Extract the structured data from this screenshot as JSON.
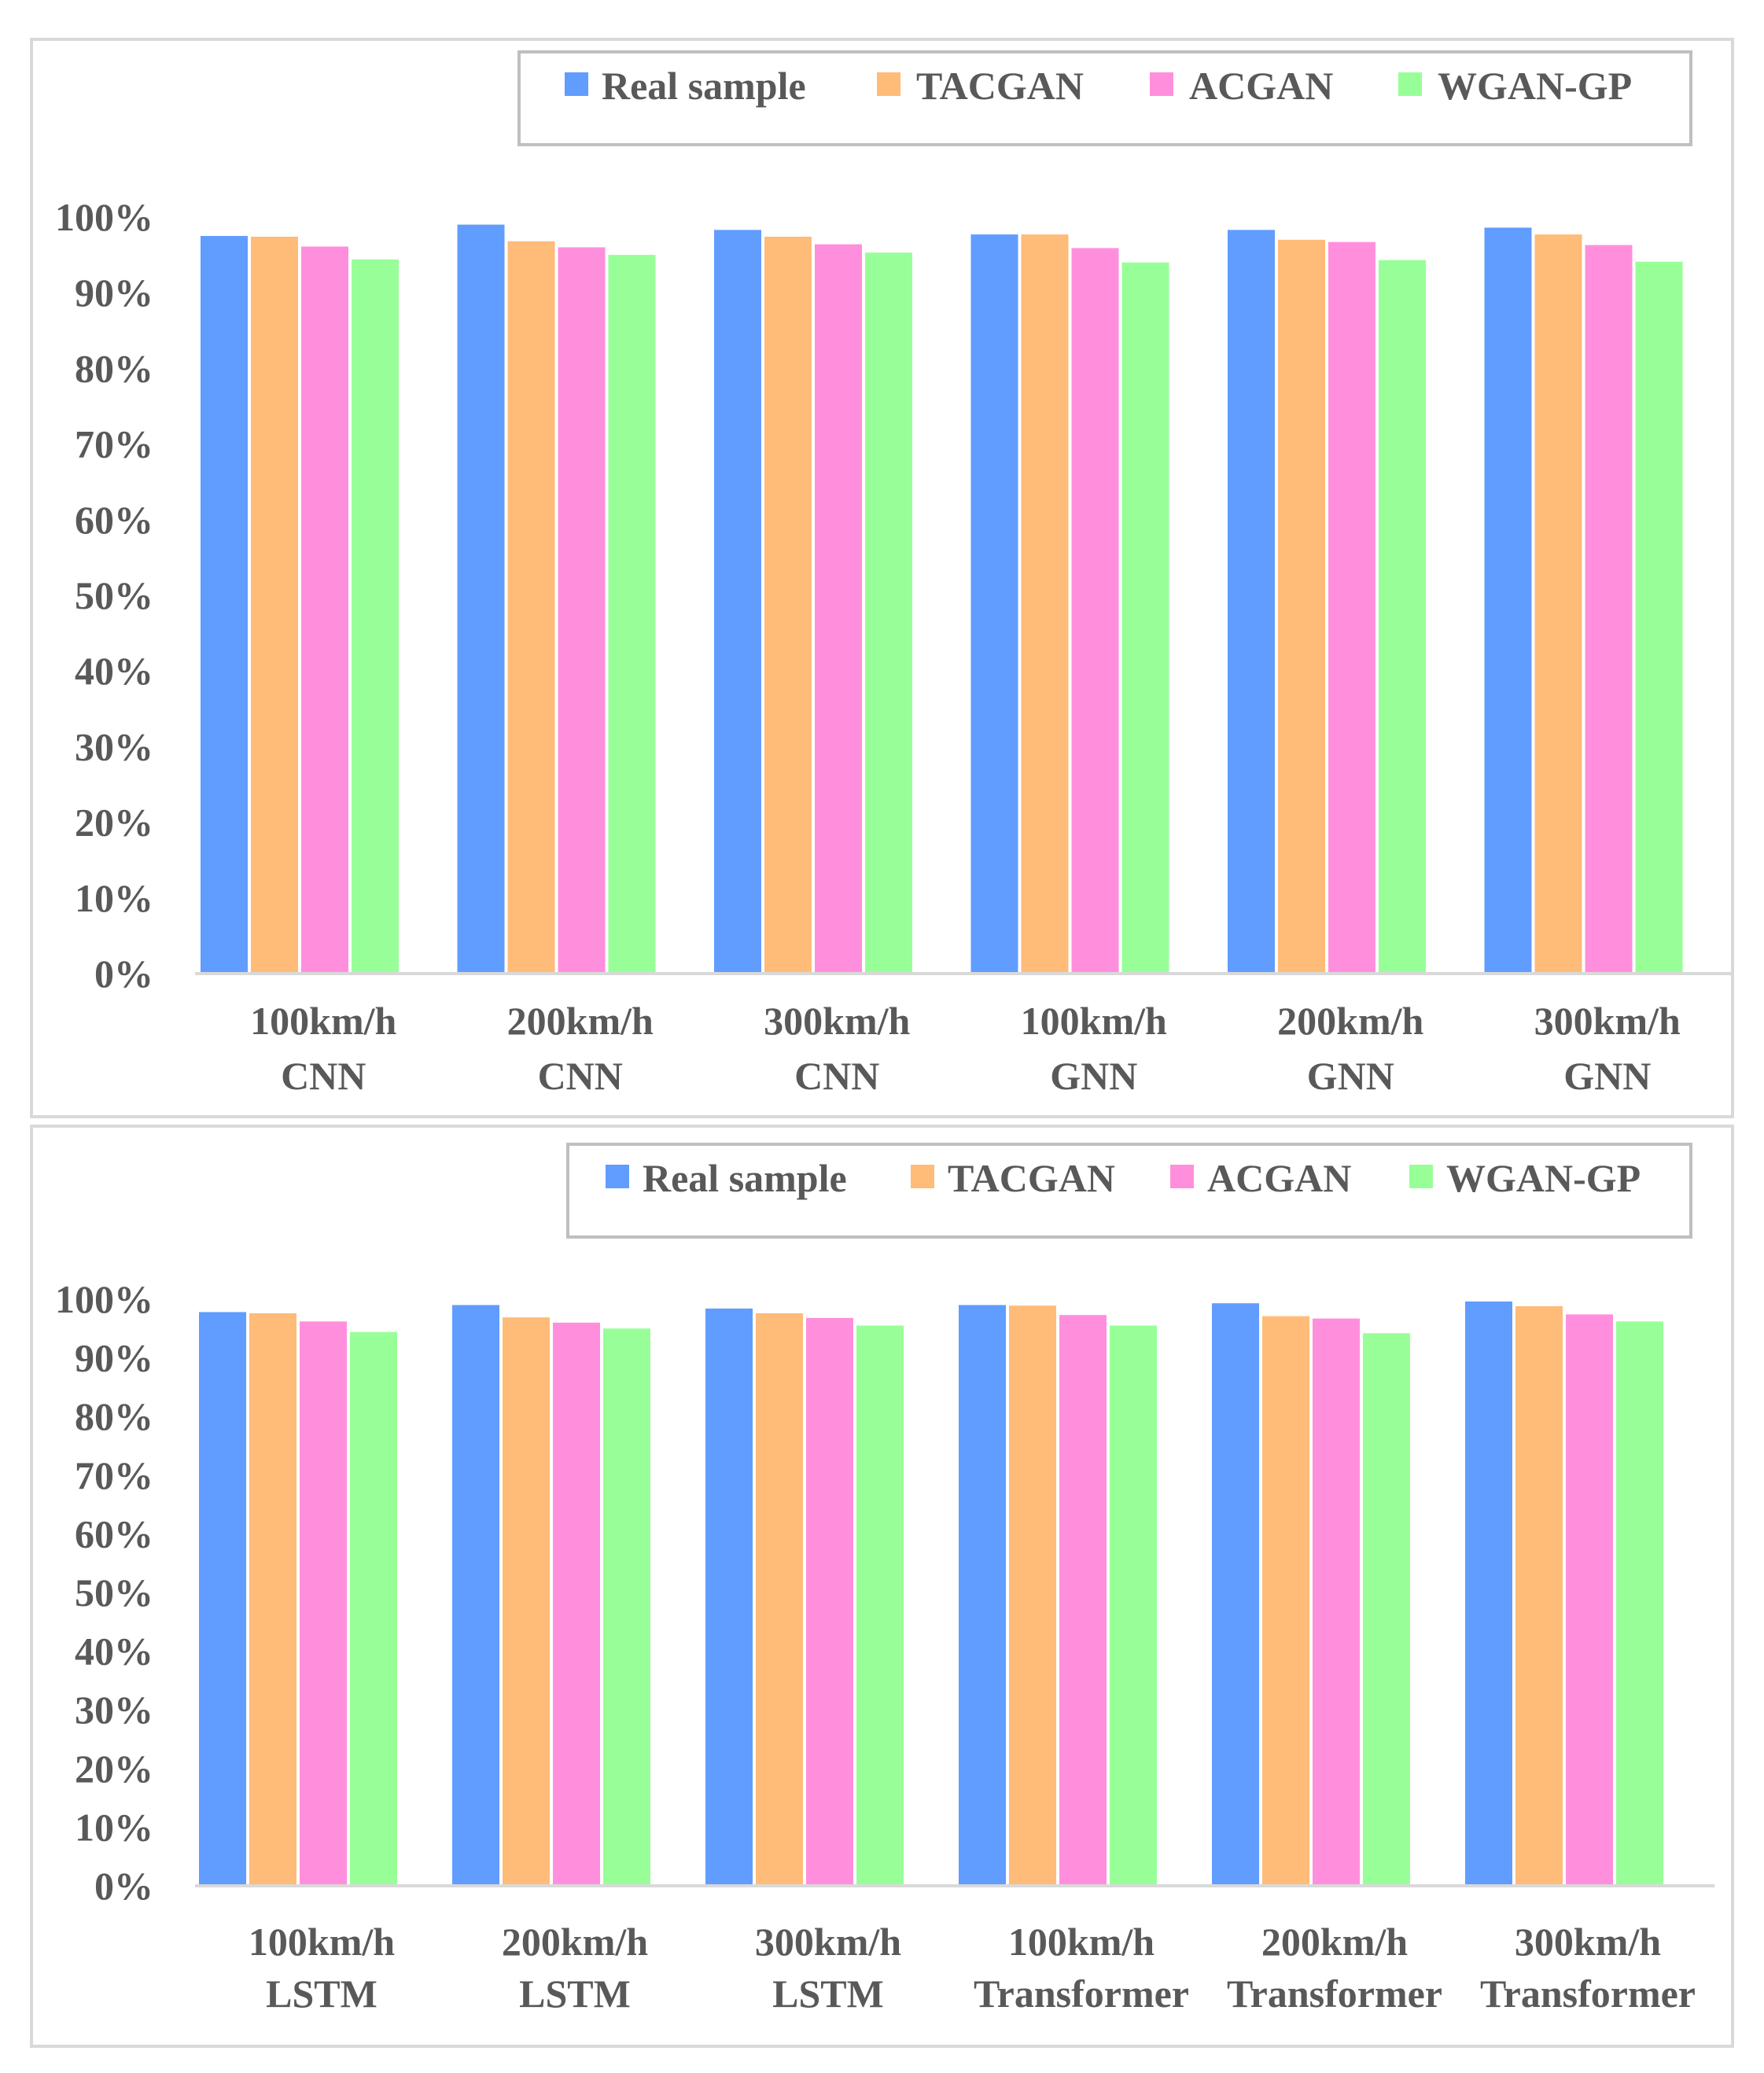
{
  "chart_data": [
    {
      "type": "bar",
      "categories": [
        [
          "100km/h",
          "CNN"
        ],
        [
          "200km/h",
          "CNN"
        ],
        [
          "300km/h",
          "CNN"
        ],
        [
          "100km/h",
          "GNN"
        ],
        [
          "200km/h",
          "GNN"
        ],
        [
          "300km/h",
          "GNN"
        ]
      ],
      "series": [
        {
          "name": "Real sample",
          "color": "#619cff",
          "values": [
            97.5,
            99.0,
            98.3,
            97.7,
            98.3,
            98.6
          ]
        },
        {
          "name": "TACGAN",
          "color": "#ffbb78",
          "values": [
            97.4,
            96.8,
            97.4,
            97.7,
            97.0,
            97.7
          ]
        },
        {
          "name": "ACGAN",
          "color": "#ff8fdd",
          "values": [
            96.1,
            96.0,
            96.4,
            95.9,
            96.7,
            96.3
          ]
        },
        {
          "name": "WGAN-GP",
          "color": "#98ff98",
          "values": [
            94.4,
            95.0,
            95.3,
            94.0,
            94.3,
            94.1
          ]
        }
      ],
      "yticks": [
        "0%",
        "10%",
        "20%",
        "30%",
        "40%",
        "50%",
        "60%",
        "70%",
        "80%",
        "90%",
        "100%"
      ],
      "ylim": [
        0,
        100
      ],
      "legend": "top-right",
      "title": "",
      "xlabel": "",
      "ylabel": ""
    },
    {
      "type": "bar",
      "categories": [
        [
          "100km/h",
          "LSTM"
        ],
        [
          "200km/h",
          "LSTM"
        ],
        [
          "300km/h",
          "LSTM"
        ],
        [
          "100km/h",
          "Transformer"
        ],
        [
          "200km/h",
          "Transformer"
        ],
        [
          "300km/h",
          "Transformer"
        ]
      ],
      "series": [
        {
          "name": "Real sample",
          "color": "#619cff",
          "values": [
            97.8,
            99.0,
            98.4,
            99.0,
            99.3,
            99.6
          ]
        },
        {
          "name": "TACGAN",
          "color": "#ffbb78",
          "values": [
            97.6,
            96.9,
            97.6,
            98.9,
            97.1,
            98.8
          ]
        },
        {
          "name": "ACGAN",
          "color": "#ff8fdd",
          "values": [
            96.2,
            96.0,
            96.8,
            97.3,
            96.7,
            97.4
          ]
        },
        {
          "name": "WGAN-GP",
          "color": "#98ff98",
          "values": [
            94.4,
            95.0,
            95.5,
            95.5,
            94.2,
            96.2
          ]
        }
      ],
      "yticks": [
        "0%",
        "10%",
        "20%",
        "30%",
        "40%",
        "50%",
        "60%",
        "70%",
        "80%",
        "90%",
        "100%"
      ],
      "ylim": [
        0,
        100
      ],
      "legend": "top-right",
      "title": "",
      "xlabel": "",
      "ylabel": ""
    }
  ]
}
